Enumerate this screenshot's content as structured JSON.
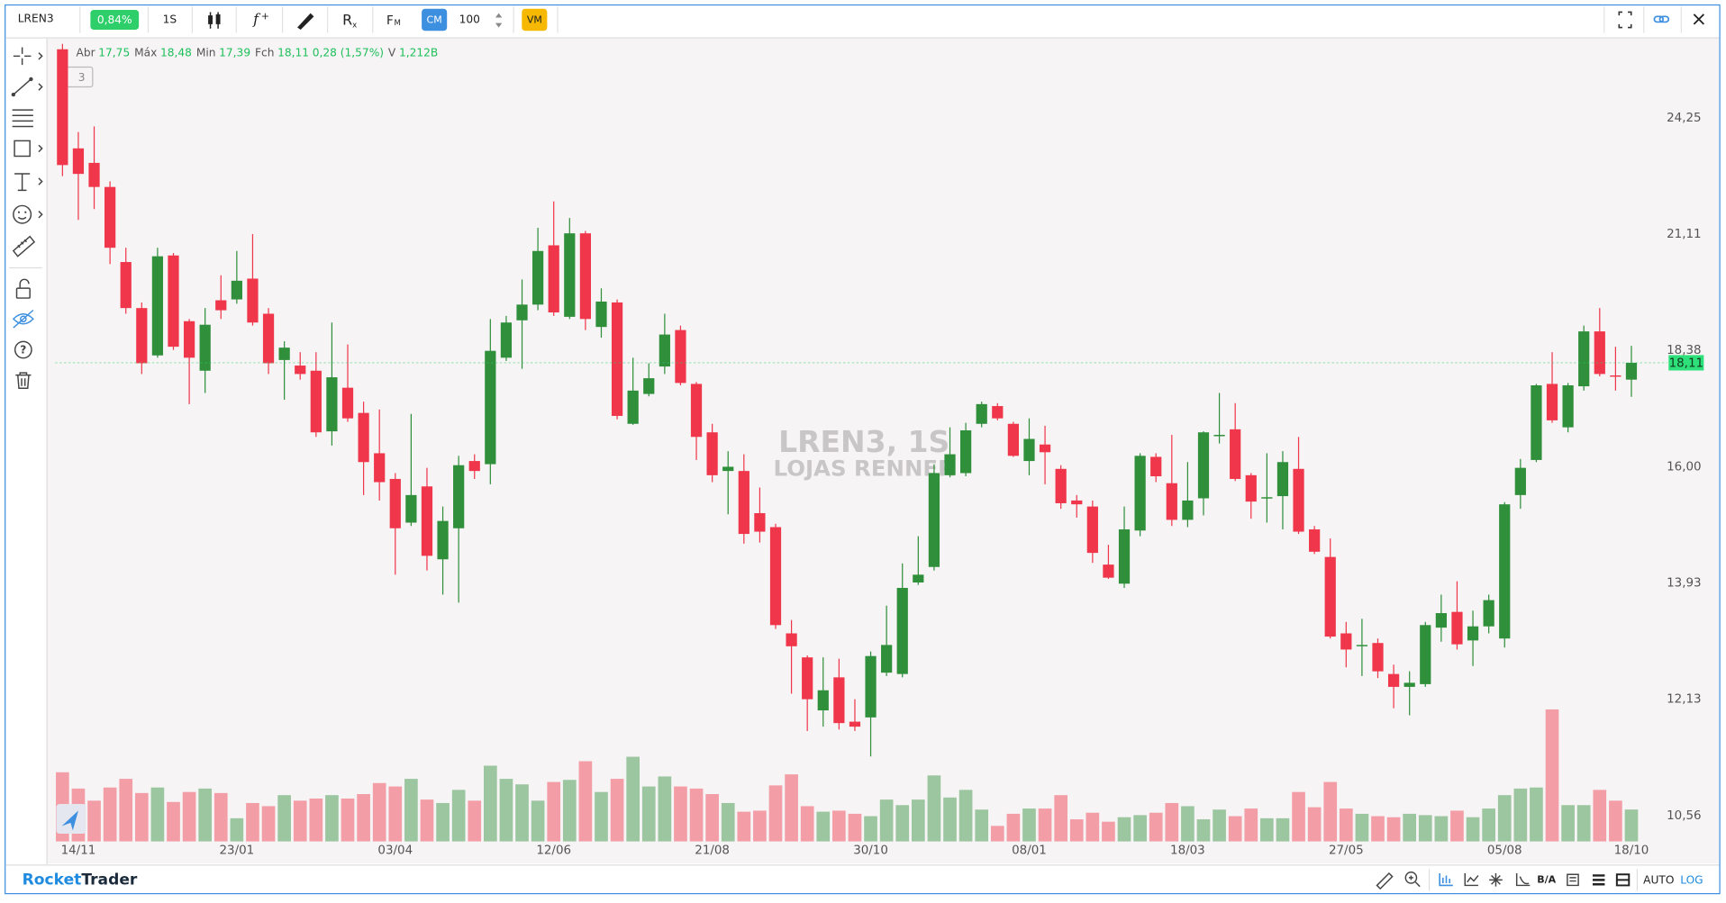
{
  "toolbar": {
    "symbol": "LREN3",
    "change": "0,84%",
    "interval": "1S",
    "cm": "CM",
    "quantity": "100",
    "vm": "VM"
  },
  "chart_data": {
    "type": "candlestick",
    "watermark_symbol": "LREN3, 1S",
    "watermark_name": "LOJAS RENNER",
    "indicator_count": "3",
    "ohlc_legend": [
      {
        "label": "Abr",
        "text": "17,75"
      },
      {
        "label": "Máx",
        "text": "18,48"
      },
      {
        "label": "Min",
        "text": "17,39"
      },
      {
        "label": "Fch",
        "text": "18,11"
      },
      {
        "text": "0,28 (1,57%)"
      },
      {
        "label": "V",
        "text": "1,212B"
      }
    ],
    "categories": [
      null,
      "14/11",
      null,
      null,
      null,
      null,
      null,
      null,
      null,
      null,
      null,
      "23/01",
      null,
      null,
      null,
      null,
      null,
      null,
      null,
      null,
      null,
      "03/04",
      null,
      null,
      null,
      null,
      null,
      null,
      null,
      null,
      null,
      "12/06",
      null,
      null,
      null,
      null,
      null,
      null,
      null,
      null,
      null,
      "21/08",
      null,
      null,
      null,
      null,
      null,
      null,
      null,
      null,
      null,
      "30/10",
      null,
      null,
      null,
      null,
      null,
      null,
      null,
      null,
      null,
      "08/01",
      null,
      null,
      null,
      null,
      null,
      null,
      null,
      null,
      null,
      "18/03",
      null,
      null,
      null,
      null,
      null,
      null,
      null,
      null,
      null,
      "27/05",
      null,
      null,
      null,
      null,
      null,
      null,
      null,
      null,
      null,
      "05/08",
      null,
      null,
      null,
      null,
      null,
      null,
      null,
      "18/10"
    ],
    "open": [
      26.31,
      23.38,
      22.98,
      22.33,
      20.42,
      19.33,
      18.27,
      20.58,
      19.03,
      17.94,
      19.51,
      19.53,
      20.02,
      19.2,
      18.17,
      18.05,
      17.94,
      16.69,
      17.58,
      17.06,
      16.26,
      15.77,
      14.97,
      15.63,
      14.33,
      14.87,
      16.11,
      16.05,
      18.22,
      19.05,
      19.41,
      20.83,
      19.13,
      21.13,
      18.9,
      19.46,
      16.84,
      17.45,
      18.03,
      18.83,
      17.66,
      16.67,
      15.92,
      15.92,
      15.14,
      14.89,
      13.12,
      12.75,
      11.97,
      12.45,
      11.81,
      11.87,
      12.52,
      12.5,
      13.94,
      14.2,
      15.84,
      15.88,
      16.84,
      17.2,
      16.84,
      16.11,
      16.43,
      15.96,
      15.37,
      15.26,
      14.24,
      13.92,
      14.83,
      16.19,
      15.69,
      15.02,
      15.41,
      16.6,
      16.73,
      15.84,
      15.41,
      15.45,
      15.96,
      14.85,
      14.37,
      13.12,
      12.92,
      12.97,
      12.5,
      12.31,
      12.35,
      13.21,
      13.46,
      13.01,
      13.23,
      13.04,
      15.47,
      16.13,
      17.66,
      16.77,
      17.61,
      18.8,
      17.84,
      17.75
    ],
    "high": [
      26.48,
      23.84,
      24.0,
      22.48,
      20.77,
      19.46,
      20.77,
      20.64,
      19.08,
      19.33,
      20.1,
      20.69,
      21.11,
      19.33,
      18.58,
      18.34,
      18.34,
      19.0,
      18.51,
      17.29,
      17.13,
      15.88,
      17.04,
      15.98,
      15.26,
      16.21,
      16.24,
      19.08,
      19.15,
      20.0,
      21.27,
      21.95,
      21.52,
      21.19,
      19.79,
      19.53,
      18.22,
      18.1,
      19.2,
      18.93,
      17.7,
      16.84,
      16.3,
      16.24,
      15.61,
      14.95,
      13.33,
      12.78,
      12.75,
      12.73,
      12.13,
      12.84,
      13.56,
      14.26,
      14.73,
      16.05,
      16.77,
      16.86,
      17.29,
      17.26,
      16.88,
      16.95,
      16.8,
      16.03,
      15.47,
      15.37,
      14.58,
      15.26,
      16.26,
      16.26,
      16.62,
      16.09,
      16.69,
      17.47,
      17.26,
      15.88,
      16.26,
      16.3,
      16.58,
      14.91,
      14.69,
      13.3,
      13.35,
      13.04,
      12.64,
      12.54,
      13.3,
      13.74,
      13.96,
      13.48,
      13.74,
      15.34,
      16.15,
      17.66,
      18.34,
      17.68,
      18.93,
      19.33,
      18.46,
      18.48
    ],
    "low": [
      22.62,
      21.47,
      21.75,
      20.37,
      19.2,
      17.87,
      18.22,
      18.39,
      17.24,
      17.47,
      19.08,
      19.43,
      18.93,
      17.87,
      17.33,
      17.75,
      16.58,
      16.41,
      16.88,
      15.47,
      15.37,
      14.07,
      14.91,
      14.14,
      13.74,
      13.61,
      15.77,
      15.67,
      18.15,
      17.98,
      19.28,
      19.15,
      19.08,
      18.83,
      18.66,
      16.93,
      16.82,
      17.4,
      17.87,
      17.63,
      16.13,
      15.71,
      15.12,
      14.6,
      14.62,
      13.19,
      12.21,
      11.68,
      11.74,
      11.7,
      11.68,
      11.33,
      12.47,
      12.45,
      13.9,
      14.14,
      15.8,
      15.82,
      16.77,
      16.91,
      16.19,
      15.84,
      15.67,
      15.22,
      15.06,
      14.27,
      14.0,
      13.85,
      14.73,
      15.71,
      14.91,
      14.89,
      15.1,
      16.45,
      15.73,
      15.04,
      14.97,
      14.85,
      14.77,
      14.42,
      13.04,
      12.6,
      12.47,
      12.44,
      12.0,
      11.9,
      12.31,
      12.99,
      12.87,
      12.62,
      13.12,
      12.9,
      15.22,
      16.09,
      16.86,
      16.67,
      17.52,
      17.82,
      17.52,
      17.39
    ],
    "close": [
      22.92,
      22.68,
      22.33,
      20.77,
      19.33,
      18.1,
      20.56,
      18.46,
      18.22,
      18.95,
      19.28,
      19.97,
      19.0,
      18.1,
      18.44,
      17.87,
      16.67,
      17.8,
      16.95,
      16.09,
      15.71,
      14.87,
      15.47,
      14.39,
      15.0,
      16.03,
      15.92,
      18.37,
      19.0,
      19.41,
      20.69,
      19.23,
      21.13,
      19.08,
      19.48,
      17.0,
      17.52,
      17.78,
      18.73,
      17.68,
      16.58,
      15.84,
      16.0,
      14.77,
      14.81,
      13.25,
      12.92,
      12.13,
      12.26,
      11.79,
      11.74,
      12.77,
      12.94,
      13.85,
      14.07,
      15.88,
      16.24,
      16.71,
      17.24,
      16.95,
      16.21,
      16.54,
      16.28,
      15.32,
      15.3,
      14.44,
      14.02,
      14.85,
      16.21,
      15.82,
      15.02,
      15.37,
      16.67,
      16.62,
      15.77,
      15.35,
      15.43,
      16.09,
      14.81,
      14.46,
      13.07,
      12.87,
      12.94,
      12.54,
      12.31,
      12.37,
      13.25,
      13.44,
      12.95,
      13.23,
      13.65,
      15.3,
      15.98,
      17.63,
      16.91,
      17.63,
      18.8,
      17.87,
      17.82,
      18.11
    ],
    "volume": [
      2.63,
      2.01,
      1.55,
      2.05,
      2.38,
      1.84,
      2.05,
      1.5,
      1.88,
      2.01,
      1.84,
      0.88,
      1.46,
      1.34,
      1.76,
      1.55,
      1.63,
      1.76,
      1.63,
      1.8,
      2.22,
      2.09,
      2.38,
      1.59,
      1.46,
      1.96,
      1.55,
      2.88,
      2.38,
      2.17,
      1.55,
      2.26,
      2.34,
      3.05,
      1.88,
      2.38,
      3.22,
      2.09,
      2.47,
      2.09,
      2.01,
      1.8,
      1.46,
      1.13,
      1.17,
      2.13,
      2.55,
      1.34,
      1.13,
      1.17,
      1.05,
      0.96,
      1.59,
      1.38,
      1.59,
      2.51,
      1.67,
      1.96,
      1.21,
      0.59,
      1.05,
      1.25,
      1.25,
      1.76,
      0.84,
      1.09,
      0.75,
      0.92,
      1.0,
      1.09,
      1.46,
      1.34,
      0.84,
      1.21,
      0.96,
      1.25,
      0.88,
      0.88,
      1.88,
      1.3,
      2.26,
      1.25,
      1.05,
      0.96,
      0.92,
      1.05,
      1.0,
      0.96,
      1.17,
      0.92,
      1.25,
      1.76,
      2.01,
      2.05,
      5.02,
      1.38,
      1.38,
      1.96,
      1.55,
      1.212
    ],
    "up_color": "#2f8f3a",
    "down_color": "#f0364a",
    "log_scale": true,
    "ylim": [
      10.24,
      26.65
    ],
    "yticks": [
      {
        "value": 10.56,
        "label": "10,56"
      },
      {
        "value": 12.13,
        "label": "12,13"
      },
      {
        "value": 13.93,
        "label": "13,93"
      },
      {
        "value": 16.0,
        "label": "16,00"
      },
      {
        "value": 18.38,
        "label": "18,38"
      },
      {
        "value": 21.11,
        "label": "21,11"
      },
      {
        "value": 24.25,
        "label": "24,25"
      }
    ],
    "last_price": {
      "value": 18.11,
      "label": "18,11"
    }
  },
  "footer": {
    "brand_first": "Rocket",
    "brand_second": "Trader",
    "auto": "AUTO",
    "log": "LOG"
  }
}
